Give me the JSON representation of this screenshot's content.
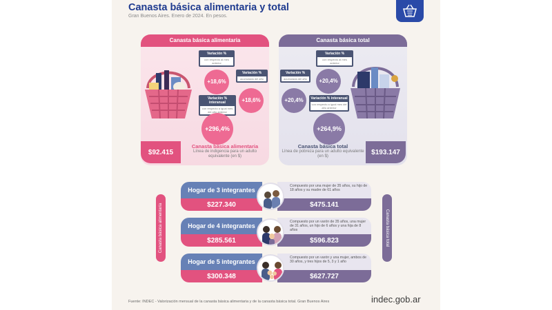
{
  "header": {
    "title": "Canasta básica alimentaria y total",
    "subtitle": "Gran Buenos Aires. Enero de 2024. En pesos."
  },
  "left_panel": {
    "heading": "Canasta básica alimentaria",
    "var_mensual": {
      "label": "Variación %",
      "sub": "con respecto al mes anterior",
      "value": "+18,6%"
    },
    "var_acumulada": {
      "label": "Variación %",
      "sub": "acumulada del año",
      "value": "+18,6%"
    },
    "var_interanual": {
      "label": "Variación % interanual",
      "sub": "con respecto a igual mes del año anterior",
      "value": "+296,4%"
    },
    "price": "$92.415",
    "caption_title": "Canasta básica alimentaria",
    "caption_sub": "Línea de indigencia para un adulto equivalente (en $)",
    "side_label": "Canasta básica alimentaria"
  },
  "right_panel": {
    "heading": "Canasta básica total",
    "var_mensual": {
      "label": "Variación %",
      "sub": "con respecto al mes anterior",
      "value": "+20,4%"
    },
    "var_acumulada": {
      "label": "Variación %",
      "sub": "acumulada del año",
      "value": "+20,4%"
    },
    "var_interanual": {
      "label": "Variación % interanual",
      "sub": "con respecto a igual mes del año anterior",
      "value": "+264,9%"
    },
    "price": "$193.147",
    "caption_title": "Canasta básica total",
    "caption_sub": "Línea de pobreza para un adulto equivalente (en $)",
    "side_label": "Canasta básica total"
  },
  "hogares": [
    {
      "title": "Hogar de 3 integrantes",
      "cba": "$227.340",
      "desc": "Compuesto por una mujer de 35 años, su hijo de 18 años y su madre de 61 años",
      "cbt": "$475.141"
    },
    {
      "title": "Hogar de 4 integrantes",
      "cba": "$285.561",
      "desc": "Compuesto por un varón de 35 años, una mujer de 31 años, un hijo de 6 años y una hija de 8 años",
      "cbt": "$596.823"
    },
    {
      "title": "Hogar de 5 integrantes",
      "cba": "$300.348",
      "desc": "Compuesto por un varón y una mujer, ambos de 30 años, y tres hijos de 5, 3 y 1 año",
      "cbt": "$627.727"
    }
  ],
  "footer": {
    "source": "Fuente: INDEC - Valorización mensual de la canasta básica alimentaria y de la canasta básica total. Gran Buenos Aires",
    "brand": "indec.gob.ar"
  }
}
